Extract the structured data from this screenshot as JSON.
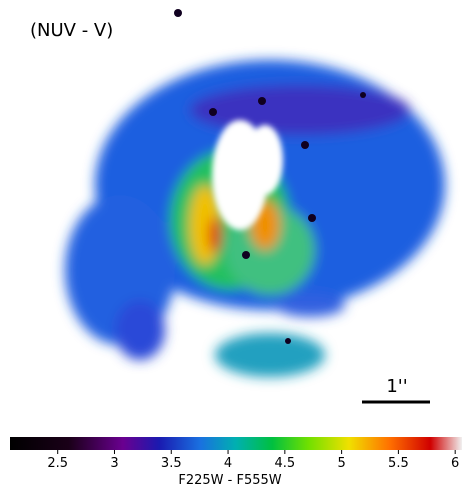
{
  "chart_data": {
    "type": "colorbar",
    "annotations": [
      "(NUV - V)",
      "1''"
    ],
    "xlabel": "F225W - F555W",
    "xlim": [
      2.08,
      6.06
    ],
    "xticks": [
      2.5,
      3,
      3.5,
      4,
      4.5,
      5,
      5.5,
      6
    ]
  }
}
